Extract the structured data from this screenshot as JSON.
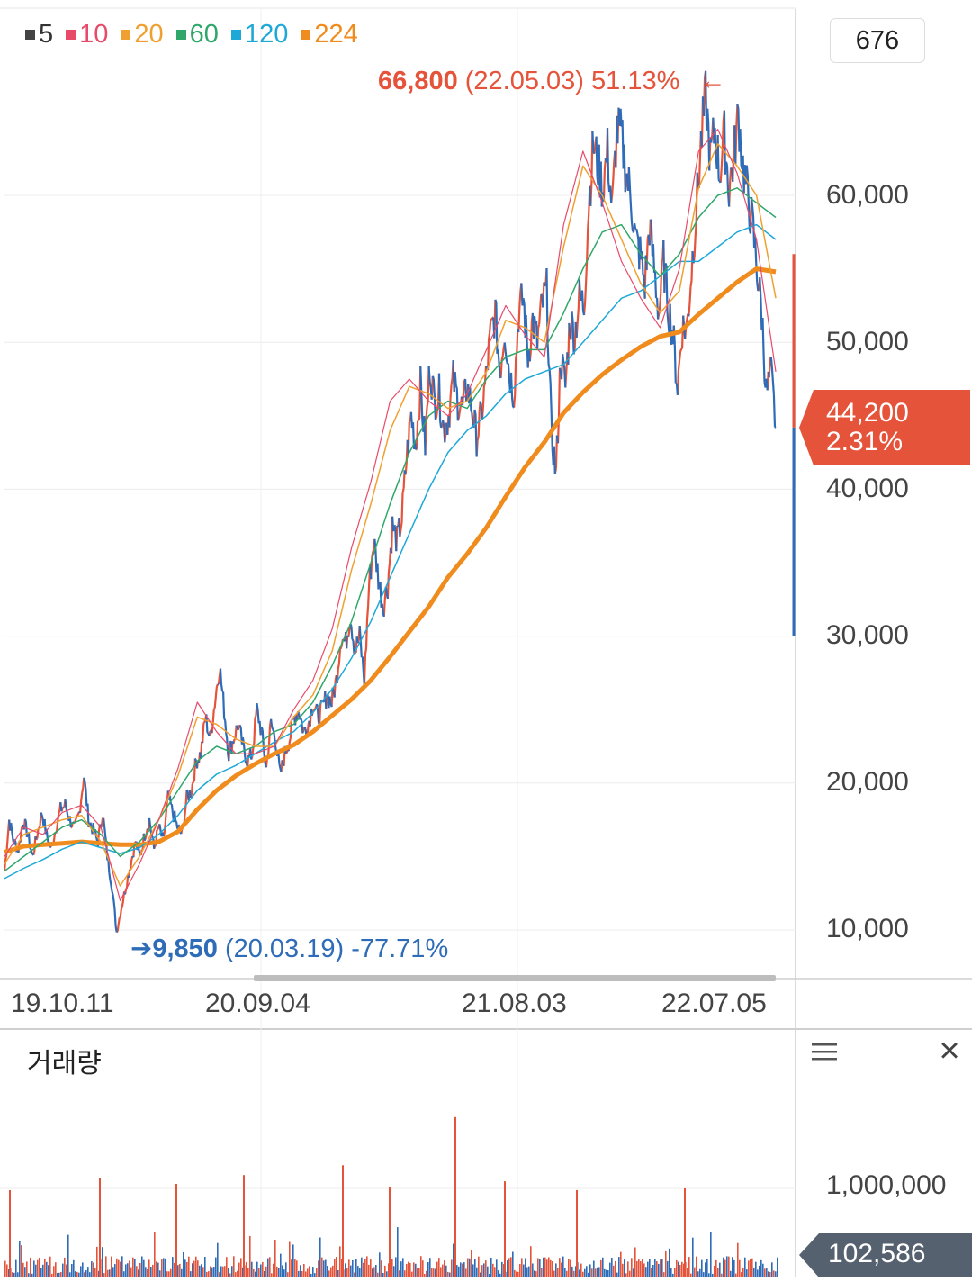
{
  "legend": [
    {
      "label": "5",
      "color": "#444444"
    },
    {
      "label": "10",
      "color": "#e84a6a"
    },
    {
      "label": "20",
      "color": "#f0a030"
    },
    {
      "label": "60",
      "color": "#2fa76a"
    },
    {
      "label": "120",
      "color": "#1ea8d8"
    },
    {
      "label": "224",
      "color": "#f08c1e"
    }
  ],
  "period_value": "676",
  "high_annotation": {
    "value": "66,800",
    "detail": "(22.05.03) 51.13%",
    "arrow": "←"
  },
  "low_annotation": {
    "arrow": "➔",
    "value": "9,850",
    "detail": "(20.03.19) -77.71%"
  },
  "current_price": {
    "price": "44,200",
    "change": "2.31%",
    "color": "#e5533a"
  },
  "volume_panel": {
    "title": "거래량",
    "menu_icon": "menu-icon",
    "close_icon": "close-icon",
    "tick_label": "1,000,000",
    "current_volume": "102,586"
  },
  "chart_data": {
    "type": "candlestick",
    "ylim": [
      6000,
      70000
    ],
    "yticks": [
      {
        "label": "10,000",
        "value": 10000
      },
      {
        "label": "20,000",
        "value": 20000
      },
      {
        "label": "30,000",
        "value": 30000
      },
      {
        "label": "40,000",
        "value": 40000
      },
      {
        "label": "50,000",
        "value": 50000
      },
      {
        "label": "60,000",
        "value": 60000
      }
    ],
    "xticks": [
      "19.10.11",
      "20.09.04",
      "21.08.03",
      "22.07.05"
    ],
    "price_path": [
      14000,
      17500,
      16000,
      15500,
      17500,
      16500,
      15000,
      16500,
      18000,
      16500,
      15500,
      17000,
      18200,
      18500,
      17500,
      16800,
      18000,
      20500,
      17500,
      16800,
      16000,
      18000,
      15000,
      13000,
      9850,
      11500,
      13000,
      14500,
      16000,
      15000,
      16500,
      17500,
      15500,
      17000,
      16000,
      19000,
      18000,
      17000,
      16500,
      19000,
      19500,
      21500,
      22000,
      24500,
      23000,
      25500,
      28000,
      25000,
      22000,
      23000,
      24000,
      22500,
      21500,
      22000,
      25000,
      23500,
      21000,
      24000,
      23000,
      20500,
      22000,
      23000,
      24500,
      25000,
      23500,
      24000,
      25500,
      24500,
      25000,
      26000,
      25500,
      27000,
      30000,
      29500,
      31500,
      29000,
      30000,
      27000,
      33500,
      36500,
      34000,
      32000,
      33500,
      37500,
      36500,
      38000,
      42000,
      45000,
      43000,
      47000,
      43000,
      48500,
      46000,
      46500,
      44000,
      45000,
      47500,
      46000,
      45500,
      47000,
      45500,
      43500,
      45000,
      47500,
      50500,
      52000,
      48000,
      51000,
      48000,
      46500,
      52000,
      53000,
      49000,
      51500,
      50000,
      52500,
      53500,
      44000,
      41000,
      49000,
      47000,
      51500,
      50500,
      53000,
      52500,
      59500,
      63500,
      62000,
      60500,
      63000,
      59000,
      64500,
      64000,
      61500,
      60000,
      57000,
      56000,
      54000,
      58000,
      55000,
      52000,
      55500,
      52500,
      50500,
      47000,
      51000,
      51000,
      55000,
      59000,
      63500,
      66800,
      62500,
      64500,
      61500,
      64000,
      60500,
      62500,
      65500,
      62000,
      60000,
      58000,
      55000,
      52000,
      46500,
      48000,
      44200
    ],
    "ma_series": [
      {
        "period": "224",
        "values": [
          15300,
          15700,
          15800,
          15900,
          16000,
          15900,
          15800,
          15800,
          16000,
          16700,
          18200,
          19500,
          20500,
          21300,
          22000,
          22600,
          23500,
          24600,
          25700,
          27000,
          28600,
          30300,
          32000,
          34000,
          35600,
          37400,
          39500,
          41500,
          43200,
          45200,
          46600,
          47800,
          48800,
          49700,
          50400,
          50700,
          51900,
          53000,
          54100,
          55000,
          54800
        ],
        "color": "#f08c1e",
        "width": 5
      },
      {
        "period": "120",
        "values": [
          13500,
          14200,
          14800,
          15500,
          16000,
          15600,
          15200,
          15600,
          16500,
          17800,
          19500,
          20600,
          21200,
          22000,
          22800,
          23500,
          24800,
          26400,
          28500,
          31000,
          34000,
          37000,
          40000,
          42500,
          44000,
          45000,
          46500,
          47500,
          48000,
          48500,
          50000,
          51500,
          53000,
          53500,
          54500,
          55500,
          55500,
          56500,
          57500,
          58000,
          57000
        ],
        "color": "#1ea8d8",
        "width": 1.5
      },
      {
        "period": "60",
        "values": [
          14000,
          15000,
          16000,
          17000,
          17500,
          16500,
          15000,
          16000,
          17500,
          19500,
          21500,
          22500,
          22000,
          22500,
          23500,
          24000,
          25500,
          28000,
          31000,
          35000,
          39000,
          42500,
          45000,
          46000,
          45500,
          47500,
          49000,
          49500,
          49500,
          52000,
          55000,
          57500,
          58000,
          56000,
          54500,
          56000,
          58500,
          60000,
          60500,
          59500,
          58500
        ],
        "color": "#2fa76a",
        "width": 1.5
      },
      {
        "period": "20",
        "values": [
          14500,
          16500,
          17000,
          17500,
          17800,
          16000,
          13000,
          15000,
          17500,
          20500,
          24500,
          24000,
          23000,
          22500,
          22500,
          24500,
          26000,
          29000,
          34500,
          39000,
          44000,
          47000,
          46500,
          45500,
          46000,
          48000,
          51500,
          51000,
          50000,
          56500,
          62000,
          60000,
          57000,
          54000,
          52000,
          53500,
          60500,
          63500,
          62000,
          60000,
          53000
        ],
        "color": "#f0a030",
        "width": 1.5
      },
      {
        "period": "10",
        "values": [
          15000,
          17000,
          16500,
          18000,
          18500,
          17000,
          12000,
          14500,
          17500,
          21000,
          25500,
          23500,
          22000,
          22000,
          22500,
          25000,
          27000,
          30500,
          36000,
          40500,
          46000,
          47500,
          46000,
          45000,
          46500,
          49500,
          52500,
          50500,
          49000,
          58000,
          63000,
          59500,
          55500,
          53000,
          51000,
          55000,
          63000,
          64500,
          61500,
          57000,
          48000
        ],
        "color": "#e84a6a",
        "width": 1.2
      }
    ],
    "high": {
      "value": 66800,
      "date": "22.05.03",
      "pct": "51.13%"
    },
    "low": {
      "value": 9850,
      "date": "20.03.19",
      "pct": "-77.71%"
    },
    "last_price": 44200,
    "today_bar": {
      "from": 30000,
      "to": 56000
    },
    "volume": {
      "ylim": [
        0,
        1400000
      ],
      "spikes": [
        980000,
        1120000,
        1050000,
        1150000,
        1260000,
        1020000,
        1800000,
        1080000,
        980000,
        1000000
      ],
      "current": 102586
    }
  }
}
